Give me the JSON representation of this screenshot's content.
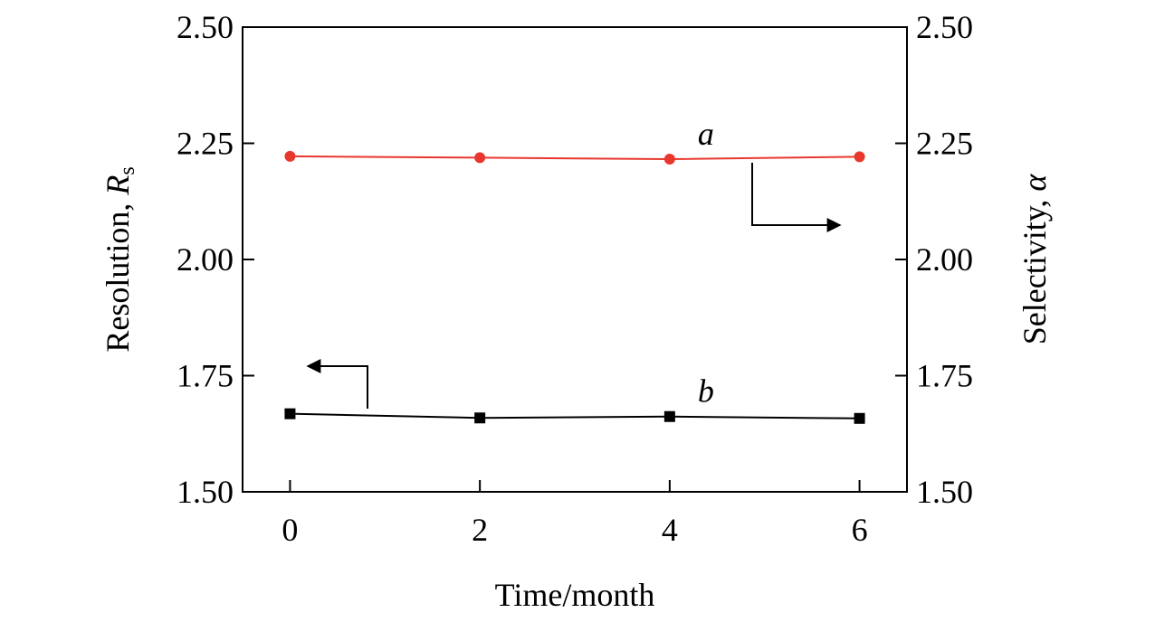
{
  "chart_data": {
    "type": "line",
    "xlabel": "Time/month",
    "ylabel_left": {
      "text": "Resolution, ",
      "symbol": "R",
      "subscript": "s"
    },
    "ylabel_right": {
      "text": "Selectivity, ",
      "symbol": "α"
    },
    "x": [
      0,
      2,
      4,
      6
    ],
    "x_ticks": [
      "0",
      "2",
      "4",
      "6"
    ],
    "y_ticks": [
      "1.50",
      "1.75",
      "2.00",
      "2.25",
      "2.50"
    ],
    "xlim": [
      -0.5,
      6.5
    ],
    "ylim_left": [
      1.5,
      2.5
    ],
    "ylim_right": [
      1.5,
      2.5
    ],
    "grid": false,
    "series": [
      {
        "name": "a",
        "axis": "right",
        "color": "#e8382e",
        "marker": "circle",
        "values": [
          2.222,
          2.219,
          2.216,
          2.221
        ],
        "direction": "right"
      },
      {
        "name": "b",
        "axis": "left",
        "color": "#000000",
        "marker": "square",
        "values": [
          1.668,
          1.659,
          1.662,
          1.658
        ],
        "direction": "left"
      }
    ]
  }
}
